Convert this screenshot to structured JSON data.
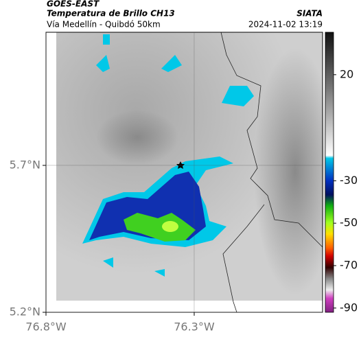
{
  "header": {
    "source": "GOES-EAST",
    "title": "Temperatura de Brillo CH13",
    "subtitle": "Vía Medellín - Quibdó 50km",
    "agency": "SIATA",
    "datetime": "2024-11-02 13:19"
  },
  "map": {
    "lat_lim": [
      5.2,
      6.153
    ],
    "lon_lim": [
      -76.8,
      -75.867
    ],
    "lat_ticks": [
      {
        "value": 5.7,
        "label": "5.7°N"
      },
      {
        "value": 5.2,
        "label": "5.2°N"
      }
    ],
    "lon_ticks": [
      {
        "value": -76.8,
        "label": "76.8°W"
      },
      {
        "value": -76.3,
        "label": "76.3°W"
      }
    ]
  },
  "colorbar": {
    "clim": [
      -92,
      40
    ],
    "ticks": [
      20,
      -30,
      -50,
      -70,
      -90
    ]
  }
}
